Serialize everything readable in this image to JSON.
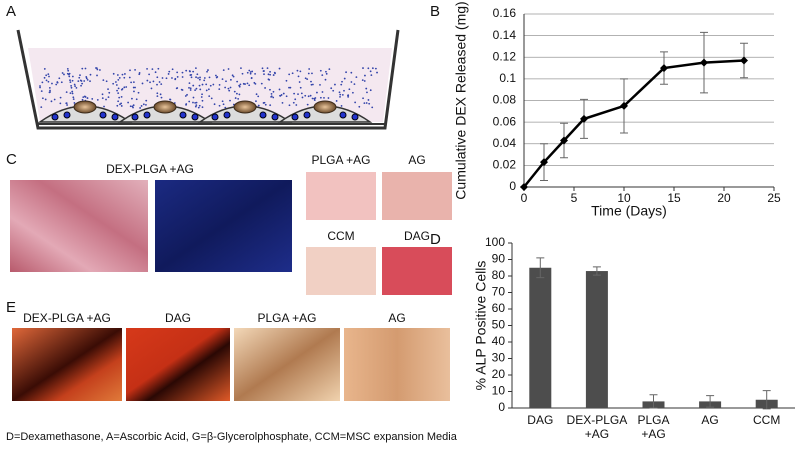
{
  "panels": {
    "a": "A",
    "b": "B",
    "c": "C",
    "d": "D",
    "e": "E"
  },
  "panel_c": {
    "main_title": "DEX-PLGA +AG",
    "small_labels": [
      "PLGA +AG",
      "AG",
      "CCM",
      "DAG"
    ]
  },
  "panel_e": {
    "labels": [
      "DEX-PLGA +AG",
      "DAG",
      "PLGA +AG",
      "AG"
    ]
  },
  "caption": "D=Dexamethasone, A=Ascorbic Acid, G=β-Glycerolphosphate, CCM=MSC expansion Media",
  "chart_data": [
    {
      "type": "line",
      "x_label": "Time (Days)",
      "y_label": "Cumulative DEX Released (mg)",
      "x": [
        0,
        2,
        4,
        6,
        10,
        14,
        18,
        22
      ],
      "values": [
        0,
        0.023,
        0.043,
        0.063,
        0.075,
        0.11,
        0.115,
        0.117
      ],
      "errors": [
        0,
        0.017,
        0.016,
        0.018,
        0.025,
        0.015,
        0.028,
        0.016
      ],
      "color": "#000000",
      "xlim": [
        0,
        25
      ],
      "xticks": [
        0,
        5,
        10,
        15,
        20,
        25
      ],
      "ylim": [
        0,
        0.16
      ],
      "yticks": [
        0,
        0.02,
        0.04,
        0.06,
        0.08,
        0.1,
        0.12,
        0.14,
        0.16
      ],
      "grid": true
    },
    {
      "type": "bar",
      "y_label": "% ALP Positive Cells",
      "categories": [
        "DAG",
        "DEX-PLGA\n+AG",
        "PLGA\n+AG",
        "AG",
        "CCM"
      ],
      "values": [
        85,
        83,
        4,
        4,
        5
      ],
      "errors": [
        6,
        2.5,
        4,
        3.5,
        5.5
      ],
      "color": "#4d4d4d",
      "ylim": [
        0,
        100
      ],
      "yticks": [
        0,
        10,
        20,
        30,
        40,
        50,
        60,
        70,
        80,
        90,
        100
      ],
      "grid": false
    }
  ]
}
